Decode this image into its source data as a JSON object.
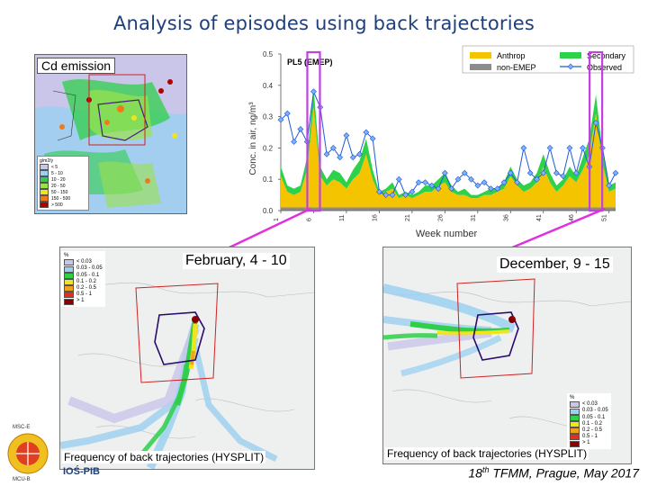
{
  "slide": {
    "title": "Analysis of episodes using back trajectories",
    "footer": {
      "ordinal": "18",
      "ordinal_sup": "th",
      "text": " TFMM, Prague, May 2017"
    }
  },
  "emission_map": {
    "label": "Cd emission",
    "legend_unit": "g/m2/y",
    "legend": [
      {
        "label": "< 5",
        "color": "#c9c6ea"
      },
      {
        "label": "5 - 10",
        "color": "#9bd0f0"
      },
      {
        "label": "10 - 20",
        "color": "#2fcf4a"
      },
      {
        "label": "20 - 50",
        "color": "#9be24a"
      },
      {
        "label": "50 - 150",
        "color": "#f0e41a"
      },
      {
        "label": "150 - 500",
        "color": "#f07a1a"
      },
      {
        "label": "> 500",
        "color": "#b00000"
      }
    ]
  },
  "chart_data": {
    "type": "area",
    "title": "PL5 (EMEP)",
    "ylabel": "Conc. in air, ng/m³",
    "xlabel": "Week number",
    "ylim": [
      0,
      0.5
    ],
    "yticks": [
      "0.0",
      "0.1",
      "0.2",
      "0.3",
      "0.4",
      "0.5"
    ],
    "xticks": [
      "1",
      "6",
      "11",
      "16",
      "21",
      "26",
      "31",
      "36",
      "41",
      "46",
      "51"
    ],
    "highlighted_weeks": [
      6,
      49
    ],
    "legend": [
      {
        "name": "Anthrop",
        "color": "#f5c400"
      },
      {
        "name": "Secondary",
        "color": "#2ed14a"
      },
      {
        "name": "non-EMEP",
        "color": "#8c8c8c"
      },
      {
        "name": "Observed",
        "color": "#1e5bd8"
      }
    ],
    "x": [
      1,
      2,
      3,
      4,
      5,
      6,
      7,
      8,
      9,
      10,
      11,
      12,
      13,
      14,
      15,
      16,
      17,
      18,
      19,
      20,
      21,
      22,
      23,
      24,
      25,
      26,
      27,
      28,
      29,
      30,
      31,
      32,
      33,
      34,
      35,
      36,
      37,
      38,
      39,
      40,
      41,
      42,
      43,
      44,
      45,
      46,
      47,
      48,
      49,
      50,
      51,
      52
    ],
    "series": [
      {
        "name": "Anthrop",
        "values": [
          0.1,
          0.05,
          0.04,
          0.05,
          0.12,
          0.32,
          0.1,
          0.07,
          0.09,
          0.08,
          0.06,
          0.09,
          0.11,
          0.17,
          0.09,
          0.04,
          0.05,
          0.06,
          0.03,
          0.04,
          0.03,
          0.04,
          0.05,
          0.05,
          0.07,
          0.08,
          0.05,
          0.04,
          0.04,
          0.03,
          0.03,
          0.04,
          0.04,
          0.05,
          0.06,
          0.1,
          0.07,
          0.05,
          0.06,
          0.08,
          0.13,
          0.08,
          0.05,
          0.07,
          0.1,
          0.08,
          0.12,
          0.17,
          0.3,
          0.14,
          0.05,
          0.06
        ]
      },
      {
        "name": "Secondary",
        "values": [
          0.03,
          0.02,
          0.02,
          0.02,
          0.04,
          0.06,
          0.03,
          0.02,
          0.03,
          0.03,
          0.02,
          0.03,
          0.04,
          0.05,
          0.03,
          0.01,
          0.01,
          0.02,
          0.01,
          0.01,
          0.01,
          0.01,
          0.02,
          0.02,
          0.02,
          0.03,
          0.02,
          0.01,
          0.02,
          0.01,
          0.01,
          0.01,
          0.02,
          0.01,
          0.02,
          0.03,
          0.02,
          0.02,
          0.02,
          0.03,
          0.04,
          0.03,
          0.02,
          0.02,
          0.03,
          0.02,
          0.04,
          0.05,
          0.06,
          0.04,
          0.02,
          0.02
        ]
      },
      {
        "name": "non-EMEP",
        "values": [
          0.01,
          0.01,
          0.01,
          0.01,
          0.01,
          0.01,
          0.01,
          0.01,
          0.01,
          0.01,
          0.01,
          0.01,
          0.01,
          0.01,
          0.01,
          0.01,
          0.01,
          0.01,
          0.01,
          0.01,
          0.01,
          0.01,
          0.01,
          0.01,
          0.01,
          0.01,
          0.01,
          0.01,
          0.01,
          0.01,
          0.01,
          0.01,
          0.01,
          0.01,
          0.01,
          0.01,
          0.01,
          0.01,
          0.01,
          0.01,
          0.01,
          0.01,
          0.01,
          0.01,
          0.01,
          0.01,
          0.01,
          0.01,
          0.01,
          0.01,
          0.01,
          0.01
        ]
      },
      {
        "name": "Observed",
        "values": [
          0.29,
          0.31,
          0.22,
          0.26,
          0.22,
          0.38,
          0.33,
          0.18,
          0.2,
          0.17,
          0.24,
          0.17,
          0.18,
          0.25,
          0.23,
          0.06,
          0.05,
          0.05,
          0.1,
          0.05,
          0.06,
          0.09,
          0.09,
          0.08,
          0.07,
          0.12,
          0.07,
          0.1,
          0.12,
          0.1,
          0.08,
          0.09,
          0.07,
          0.07,
          0.09,
          0.12,
          0.09,
          0.2,
          0.12,
          0.1,
          0.12,
          0.2,
          0.12,
          0.11,
          0.2,
          0.12,
          0.2,
          0.14,
          0.28,
          0.2,
          0.08,
          0.12
        ]
      }
    ]
  },
  "traj_left": {
    "period": "February, 4 - 10",
    "caption": "Frequency of back trajectories (HYSPLIT)",
    "legend_unit": "%",
    "legend": [
      {
        "label": "< 0.03",
        "color": "#c9c6ea"
      },
      {
        "label": "0.03 - 0.05",
        "color": "#9bd0f0"
      },
      {
        "label": "0.05 - 0.1",
        "color": "#2fcf4a"
      },
      {
        "label": "0.1 - 0.2",
        "color": "#f0e41a"
      },
      {
        "label": "0.2 - 0.5",
        "color": "#f0a21a"
      },
      {
        "label": "0.5 - 1",
        "color": "#e03020"
      },
      {
        "label": "> 1",
        "color": "#8a0000"
      }
    ]
  },
  "traj_right": {
    "period": "December, 9 - 15",
    "caption": "Frequency of back trajectories (HYSPLIT)",
    "legend_unit": "%",
    "legend": [
      {
        "label": "< 0.03",
        "color": "#c9c6ea"
      },
      {
        "label": "0.03 - 0.05",
        "color": "#9bd0f0"
      },
      {
        "label": "0.05 - 0.1",
        "color": "#2fcf4a"
      },
      {
        "label": "0.1 - 0.2",
        "color": "#f0e41a"
      },
      {
        "label": "0.2 - 0.5",
        "color": "#f0a21a"
      },
      {
        "label": "0.5 - 1",
        "color": "#e03020"
      },
      {
        "label": "> 1",
        "color": "#8a0000"
      }
    ]
  },
  "logos": {
    "left_top": "MSC-E",
    "left_bottom": "MCU-B",
    "ios": "IOŚ-PIB"
  },
  "colors": {
    "title": "#1f3f7a",
    "highlight": "#c040e0",
    "pointer": "#e030e0",
    "country_border": "#4a1a8a",
    "region_box": "#d02020"
  }
}
